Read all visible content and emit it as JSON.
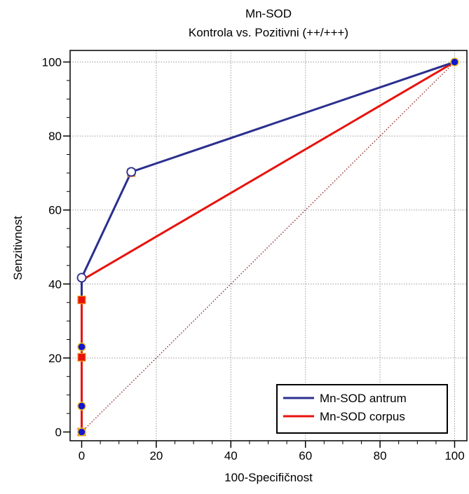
{
  "chart_data": {
    "type": "line",
    "title": "Mn-SOD",
    "subtitle": "Kontrola vs. Pozitivni (++/+++)",
    "xlabel": "100-Specifičnost",
    "ylabel": "Senzitivnost",
    "xlim": [
      -3,
      100
    ],
    "ylim": [
      -2,
      103
    ],
    "xticks": [
      0,
      20,
      40,
      60,
      80,
      100
    ],
    "yticks": [
      0,
      20,
      40,
      60,
      80,
      100
    ],
    "grid": true,
    "legend_position": "bottom-right",
    "reference_line": {
      "x": [
        0,
        100
      ],
      "y": [
        0,
        100
      ],
      "color": "#8b1a1a",
      "style": "dotted"
    },
    "series": [
      {
        "name": "Mn-SOD antrum",
        "color": "#2b2f8f",
        "marker": "circle",
        "line_x": [
          0,
          0,
          13.3,
          100
        ],
        "line_y": [
          35,
          41.7,
          70.3,
          100
        ],
        "points_x": [
          0,
          13.3,
          100
        ],
        "points_y": [
          41.7,
          70.3,
          100
        ]
      },
      {
        "name": "Mn-SOD corpus",
        "color": "#e8120c",
        "marker": "square",
        "line_x": [
          0,
          0,
          100
        ],
        "line_y": [
          0,
          41,
          100
        ],
        "points_x": [
          0,
          0,
          0,
          13.3
        ],
        "points_y": [
          0,
          20.2,
          35.7,
          70.1
        ]
      }
    ],
    "extra_points": {
      "fill": "#1515d0",
      "stroke": "#e8c020",
      "x": [
        0,
        0,
        0,
        100
      ],
      "y": [
        0,
        7,
        23,
        100
      ]
    }
  }
}
